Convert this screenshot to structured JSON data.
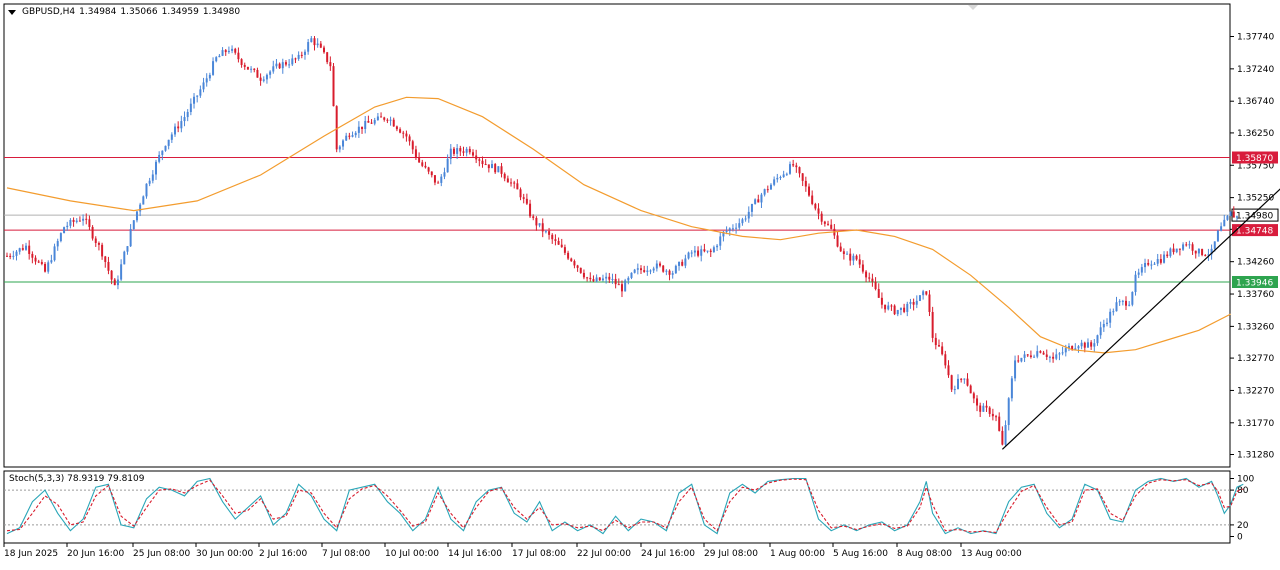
{
  "header": {
    "symbol": "GBPUSD,H4",
    "open": "1.34984",
    "high": "1.35066",
    "low": "1.34959",
    "close": "1.34980"
  },
  "stoch_panel": {
    "label": "Stoch(5,3,3) 78.9319 79.8109",
    "levels": [
      "100",
      "80",
      "20",
      "0"
    ]
  },
  "colors": {
    "bull": "#4a86d8",
    "bear": "#d81c2c",
    "ma": "#f39c2e",
    "resistance": "#d81c3c",
    "current": "#b0b0b0",
    "support": "#2ea44f",
    "trendline": "#000000",
    "stoch_main": "#2aa6b8",
    "stoch_signal": "#d81c2c"
  },
  "chart_data": {
    "type": "candlestick",
    "y_ticks": [
      "1.37740",
      "1.37240",
      "1.36740",
      "1.36250",
      "1.35750",
      "1.35250",
      "1.34760",
      "1.34260",
      "1.33760",
      "1.33260",
      "1.32770",
      "1.32270",
      "1.31770",
      "1.31280"
    ],
    "y_range": [
      1.3128,
      1.3804
    ],
    "x_ticks": [
      "18 Jun 2025",
      "20 Jun 16:00",
      "25 Jun 08:00",
      "30 Jun 00:00",
      "2 Jul 16:00",
      "7 Jul 08:00",
      "10 Jul 00:00",
      "14 Jul 16:00",
      "17 Jul 08:00",
      "22 Jul 00:00",
      "24 Jul 16:00",
      "29 Jul 08:00",
      "1 Aug 00:00",
      "5 Aug 16:00",
      "8 Aug 08:00",
      "13 Aug 00:00"
    ],
    "price_labels": [
      {
        "value": "1.35870",
        "price": 1.3587,
        "role": "resistance"
      },
      {
        "value": "1.34980",
        "price": 1.3498,
        "role": "current"
      },
      {
        "value": "1.34748",
        "price": 1.34748,
        "role": "resistance"
      },
      {
        "value": "1.33946",
        "price": 1.33946,
        "role": "support"
      }
    ],
    "close_path": [
      [
        0,
        1.3435
      ],
      [
        6,
        1.345
      ],
      [
        12,
        1.341
      ],
      [
        18,
        1.348
      ],
      [
        24,
        1.3495
      ],
      [
        30,
        1.344
      ],
      [
        34,
        1.3385
      ],
      [
        40,
        1.349
      ],
      [
        44,
        1.3545
      ],
      [
        50,
        1.361
      ],
      [
        56,
        1.365
      ],
      [
        62,
        1.37
      ],
      [
        66,
        1.374
      ],
      [
        70,
        1.3755
      ],
      [
        76,
        1.3725
      ],
      [
        80,
        1.371
      ],
      [
        86,
        1.373
      ],
      [
        92,
        1.374
      ],
      [
        96,
        1.377
      ],
      [
        98,
        1.376
      ],
      [
        102,
        1.373
      ],
      [
        104,
        1.36
      ],
      [
        108,
        1.3625
      ],
      [
        114,
        1.364
      ],
      [
        120,
        1.365
      ],
      [
        126,
        1.362
      ],
      [
        130,
        1.358
      ],
      [
        136,
        1.3545
      ],
      [
        140,
        1.3595
      ],
      [
        146,
        1.36
      ],
      [
        150,
        1.358
      ],
      [
        156,
        1.3565
      ],
      [
        162,
        1.353
      ],
      [
        166,
        1.349
      ],
      [
        172,
        1.346
      ],
      [
        178,
        1.343
      ],
      [
        184,
        1.3395
      ],
      [
        190,
        1.34
      ],
      [
        194,
        1.3385
      ],
      [
        198,
        1.341
      ],
      [
        204,
        1.342
      ],
      [
        210,
        1.341
      ],
      [
        216,
        1.344
      ],
      [
        222,
        1.344
      ],
      [
        226,
        1.347
      ],
      [
        232,
        1.349
      ],
      [
        238,
        1.353
      ],
      [
        244,
        1.356
      ],
      [
        248,
        1.3575
      ],
      [
        252,
        1.354
      ],
      [
        256,
        1.35
      ],
      [
        260,
        1.3475
      ],
      [
        264,
        1.3435
      ],
      [
        268,
        1.343
      ],
      [
        272,
        1.34
      ],
      [
        276,
        1.336
      ],
      [
        280,
        1.335
      ],
      [
        284,
        1.3355
      ],
      [
        288,
        1.337
      ],
      [
        290,
        1.338
      ],
      [
        292,
        1.331
      ],
      [
        296,
        1.327
      ],
      [
        298,
        1.323
      ],
      [
        302,
        1.325
      ],
      [
        306,
        1.32
      ],
      [
        310,
        1.3195
      ],
      [
        312,
        1.3185
      ],
      [
        314,
        1.314
      ],
      [
        316,
        1.321
      ],
      [
        318,
        1.3275
      ],
      [
        322,
        1.328
      ],
      [
        326,
        1.329
      ],
      [
        330,
        1.3275
      ],
      [
        334,
        1.329
      ],
      [
        338,
        1.33
      ],
      [
        342,
        1.3295
      ],
      [
        346,
        1.333
      ],
      [
        350,
        1.336
      ],
      [
        354,
        1.3365
      ],
      [
        356,
        1.34
      ],
      [
        360,
        1.3425
      ],
      [
        364,
        1.343
      ],
      [
        368,
        1.3445
      ],
      [
        372,
        1.3455
      ],
      [
        376,
        1.344
      ],
      [
        380,
        1.344
      ],
      [
        382,
        1.347
      ],
      [
        386,
        1.35
      ],
      [
        388,
        1.3495
      ]
    ],
    "series": [
      {
        "name": "",
        "kind": "moving-average",
        "values": [
          [
            0,
            1.354
          ],
          [
            20,
            1.352
          ],
          [
            40,
            1.3505
          ],
          [
            60,
            1.352
          ],
          [
            80,
            1.356
          ],
          [
            100,
            1.362
          ],
          [
            116,
            1.3665
          ],
          [
            126,
            1.368
          ],
          [
            136,
            1.3678
          ],
          [
            150,
            1.365
          ],
          [
            166,
            1.36
          ],
          [
            182,
            1.3545
          ],
          [
            200,
            1.3505
          ],
          [
            216,
            1.348
          ],
          [
            232,
            1.3465
          ],
          [
            244,
            1.346
          ],
          [
            256,
            1.347
          ],
          [
            268,
            1.3475
          ],
          [
            280,
            1.3465
          ],
          [
            292,
            1.3445
          ],
          [
            304,
            1.3405
          ],
          [
            316,
            1.3355
          ],
          [
            326,
            1.331
          ],
          [
            336,
            1.329
          ],
          [
            346,
            1.3285
          ],
          [
            356,
            1.329
          ],
          [
            366,
            1.3305
          ],
          [
            376,
            1.332
          ],
          [
            386,
            1.3345
          ]
        ]
      }
    ],
    "trendline": [
      [
        314,
        1.3136
      ],
      [
        402,
        1.354
      ]
    ],
    "stochastic": {
      "main": [
        [
          0,
          5
        ],
        [
          4,
          15
        ],
        [
          8,
          60
        ],
        [
          12,
          80
        ],
        [
          16,
          40
        ],
        [
          20,
          10
        ],
        [
          24,
          30
        ],
        [
          28,
          85
        ],
        [
          32,
          90
        ],
        [
          36,
          20
        ],
        [
          40,
          15
        ],
        [
          44,
          65
        ],
        [
          48,
          85
        ],
        [
          52,
          80
        ],
        [
          56,
          70
        ],
        [
          60,
          95
        ],
        [
          64,
          100
        ],
        [
          68,
          60
        ],
        [
          72,
          30
        ],
        [
          76,
          50
        ],
        [
          80,
          70
        ],
        [
          84,
          20
        ],
        [
          88,
          40
        ],
        [
          92,
          90
        ],
        [
          96,
          70
        ],
        [
          100,
          30
        ],
        [
          104,
          10
        ],
        [
          108,
          80
        ],
        [
          112,
          85
        ],
        [
          116,
          90
        ],
        [
          120,
          60
        ],
        [
          124,
          40
        ],
        [
          128,
          10
        ],
        [
          132,
          30
        ],
        [
          136,
          85
        ],
        [
          140,
          30
        ],
        [
          144,
          10
        ],
        [
          148,
          60
        ],
        [
          152,
          80
        ],
        [
          156,
          85
        ],
        [
          160,
          40
        ],
        [
          164,
          25
        ],
        [
          168,
          60
        ],
        [
          172,
          10
        ],
        [
          176,
          25
        ],
        [
          180,
          10
        ],
        [
          184,
          20
        ],
        [
          188,
          5
        ],
        [
          192,
          35
        ],
        [
          196,
          10
        ],
        [
          200,
          30
        ],
        [
          204,
          25
        ],
        [
          208,
          10
        ],
        [
          212,
          75
        ],
        [
          216,
          90
        ],
        [
          220,
          20
        ],
        [
          224,
          5
        ],
        [
          228,
          75
        ],
        [
          232,
          90
        ],
        [
          236,
          75
        ],
        [
          240,
          95
        ],
        [
          244,
          98
        ],
        [
          248,
          100
        ],
        [
          252,
          100
        ],
        [
          256,
          30
        ],
        [
          260,
          10
        ],
        [
          264,
          20
        ],
        [
          268,
          10
        ],
        [
          272,
          20
        ],
        [
          276,
          25
        ],
        [
          280,
          10
        ],
        [
          284,
          20
        ],
        [
          288,
          60
        ],
        [
          290,
          95
        ],
        [
          292,
          40
        ],
        [
          296,
          5
        ],
        [
          300,
          15
        ],
        [
          304,
          5
        ],
        [
          308,
          10
        ],
        [
          312,
          5
        ],
        [
          316,
          60
        ],
        [
          320,
          85
        ],
        [
          324,
          90
        ],
        [
          328,
          40
        ],
        [
          332,
          15
        ],
        [
          336,
          30
        ],
        [
          340,
          90
        ],
        [
          344,
          80
        ],
        [
          348,
          30
        ],
        [
          352,
          25
        ],
        [
          356,
          80
        ],
        [
          360,
          95
        ],
        [
          364,
          100
        ],
        [
          368,
          95
        ],
        [
          372,
          100
        ],
        [
          376,
          85
        ],
        [
          380,
          95
        ],
        [
          382,
          70
        ],
        [
          384,
          40
        ],
        [
          386,
          55
        ],
        [
          388,
          85
        ],
        [
          390,
          90
        ]
      ],
      "signal": [
        [
          0,
          10
        ],
        [
          4,
          12
        ],
        [
          8,
          40
        ],
        [
          12,
          70
        ],
        [
          16,
          55
        ],
        [
          20,
          20
        ],
        [
          24,
          25
        ],
        [
          28,
          70
        ],
        [
          32,
          88
        ],
        [
          36,
          35
        ],
        [
          40,
          18
        ],
        [
          44,
          50
        ],
        [
          48,
          80
        ],
        [
          52,
          82
        ],
        [
          56,
          75
        ],
        [
          60,
          88
        ],
        [
          64,
          97
        ],
        [
          68,
          70
        ],
        [
          72,
          40
        ],
        [
          76,
          45
        ],
        [
          80,
          65
        ],
        [
          84,
          30
        ],
        [
          88,
          35
        ],
        [
          92,
          80
        ],
        [
          96,
          75
        ],
        [
          100,
          40
        ],
        [
          104,
          15
        ],
        [
          108,
          65
        ],
        [
          112,
          82
        ],
        [
          116,
          88
        ],
        [
          120,
          70
        ],
        [
          124,
          45
        ],
        [
          128,
          18
        ],
        [
          132,
          25
        ],
        [
          136,
          75
        ],
        [
          140,
          40
        ],
        [
          144,
          15
        ],
        [
          148,
          50
        ],
        [
          152,
          78
        ],
        [
          156,
          84
        ],
        [
          160,
          50
        ],
        [
          164,
          30
        ],
        [
          168,
          50
        ],
        [
          172,
          20
        ],
        [
          176,
          22
        ],
        [
          180,
          15
        ],
        [
          184,
          18
        ],
        [
          188,
          10
        ],
        [
          192,
          28
        ],
        [
          196,
          15
        ],
        [
          200,
          25
        ],
        [
          204,
          25
        ],
        [
          208,
          15
        ],
        [
          212,
          60
        ],
        [
          216,
          85
        ],
        [
          220,
          30
        ],
        [
          224,
          10
        ],
        [
          228,
          60
        ],
        [
          232,
          85
        ],
        [
          236,
          80
        ],
        [
          240,
          92
        ],
        [
          244,
          97
        ],
        [
          248,
          99
        ],
        [
          252,
          98
        ],
        [
          256,
          45
        ],
        [
          260,
          15
        ],
        [
          264,
          18
        ],
        [
          268,
          12
        ],
        [
          272,
          18
        ],
        [
          276,
          22
        ],
        [
          280,
          14
        ],
        [
          284,
          18
        ],
        [
          288,
          50
        ],
        [
          290,
          85
        ],
        [
          292,
          55
        ],
        [
          296,
          10
        ],
        [
          300,
          12
        ],
        [
          304,
          8
        ],
        [
          308,
          9
        ],
        [
          312,
          7
        ],
        [
          316,
          45
        ],
        [
          320,
          78
        ],
        [
          324,
          88
        ],
        [
          328,
          50
        ],
        [
          332,
          20
        ],
        [
          336,
          25
        ],
        [
          340,
          80
        ],
        [
          344,
          82
        ],
        [
          348,
          40
        ],
        [
          352,
          28
        ],
        [
          356,
          70
        ],
        [
          360,
          92
        ],
        [
          364,
          98
        ],
        [
          368,
          96
        ],
        [
          372,
          98
        ],
        [
          376,
          88
        ],
        [
          380,
          92
        ],
        [
          382,
          78
        ],
        [
          384,
          50
        ],
        [
          386,
          52
        ],
        [
          388,
          78
        ],
        [
          390,
          82
        ]
      ]
    }
  }
}
